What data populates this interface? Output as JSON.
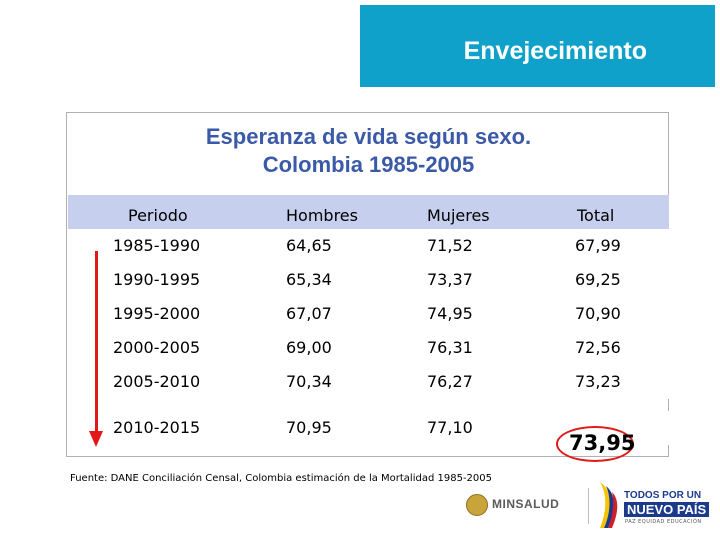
{
  "header": {
    "title": "Envejecimiento"
  },
  "table_card": {
    "title_line1": "Esperanza de vida según sexo.",
    "title_line2": "Colombia 1985-2005",
    "columns": [
      "Periodo",
      "Hombres",
      "Mujeres",
      "Total"
    ],
    "rows": [
      [
        "1985-1990",
        "64,65",
        "71,52",
        "67,99"
      ],
      [
        "1990-1995",
        "65,34",
        "73,37",
        "69,25"
      ],
      [
        "1995-2000",
        "67,07",
        "74,95",
        "70,90"
      ],
      [
        "2000-2005",
        "69,00",
        "76,31",
        "72,56"
      ],
      [
        "2005-2010",
        "70,34",
        "76,27",
        "73,23"
      ],
      [
        "2010-2015",
        "70,95",
        "77,10",
        "73,95"
      ]
    ]
  },
  "footnote": "Fuente: DANE Conciliación Censal, Colombia estimación de la Mortalidad 1985-2005",
  "logos": {
    "minsalud": "MINSALUD",
    "tpnp_line1": "TODOS POR UN",
    "tpnp_line2": "NUEVO PAÍS",
    "tpnp_line3": "PAZ EQUIDAD EDUCACIÓN"
  },
  "colors": {
    "header_bg": "#0fa1c9",
    "title_color": "#3a5aa8",
    "table_header_bg": "#c6d0ee",
    "accent_red": "#e11818"
  }
}
